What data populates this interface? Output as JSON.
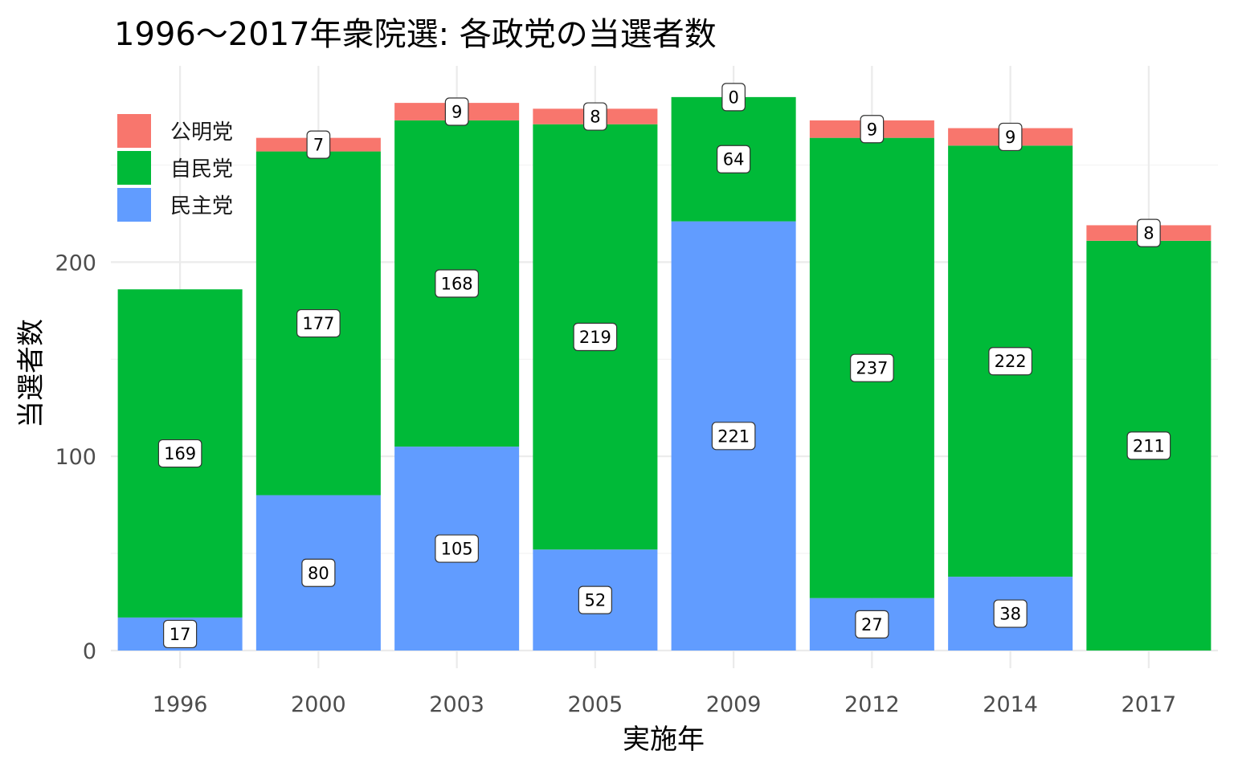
{
  "chart_data": {
    "type": "bar",
    "stacked": true,
    "title": "1996～2017年衆院選: 各政党の当選者数",
    "xlabel": "実施年",
    "ylabel": "当選者数",
    "categories": [
      "1996",
      "2000",
      "2003",
      "2005",
      "2009",
      "2012",
      "2014",
      "2017"
    ],
    "series": [
      {
        "name": "民主党",
        "color": "#619CFF",
        "values": [
          17,
          80,
          105,
          52,
          221,
          27,
          38,
          null
        ]
      },
      {
        "name": "自民党",
        "color": "#00BA38",
        "values": [
          169,
          177,
          168,
          219,
          64,
          237,
          222,
          211
        ]
      },
      {
        "name": "公明党",
        "color": "#F8766D",
        "values": [
          null,
          7,
          9,
          8,
          0,
          9,
          9,
          8
        ]
      }
    ],
    "legend_order": [
      "公明党",
      "自民党",
      "民主党"
    ],
    "legend_position": "top-left",
    "y_ticks": [
      0,
      100,
      200
    ],
    "ylim": [
      0,
      300
    ],
    "grid": true
  }
}
